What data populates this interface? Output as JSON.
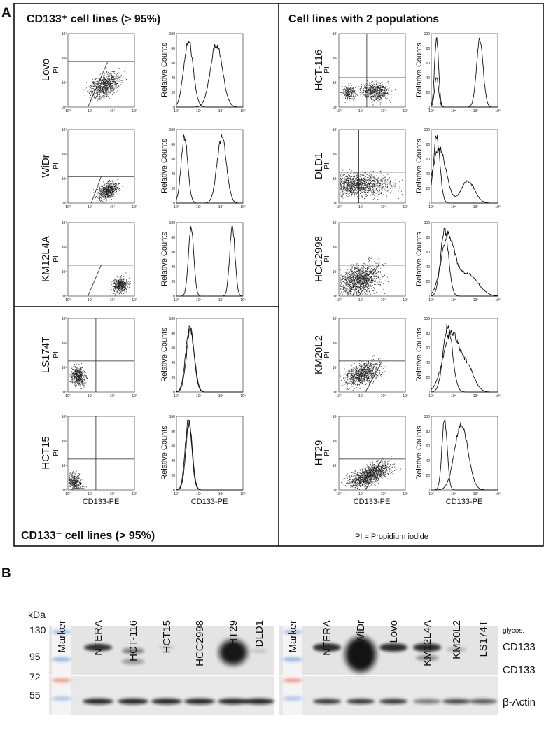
{
  "panel_a": {
    "label": "A",
    "positive_title": "CD133⁺ cell lines (> 95%)",
    "negative_title": "CD133⁻ cell lines (> 95%)",
    "two_pop_title": "Cell lines with 2 populations",
    "positive_lines": [
      "Lovo",
      "WiDr",
      "KM12L4A"
    ],
    "negative_lines": [
      "LS174T",
      "HCT15"
    ],
    "two_pop_lines": [
      "HCT-116",
      "DLD1",
      "HCC2998",
      "KM20L2",
      "HT29"
    ],
    "dot_y_axis": "PI",
    "hist_y_axis": "Relative Counts",
    "x_axis": "CD133-PE",
    "hist_ticks": [
      "0",
      "20",
      "40",
      "60",
      "80",
      "100"
    ],
    "log_ticks": [
      "10⁰",
      "10¹",
      "10²",
      "10³"
    ],
    "footnote": "PI = Propidium iodide"
  },
  "panel_b": {
    "label": "B",
    "kda_label": "kDa",
    "kda_markers": [
      "130",
      "95",
      "72",
      "55"
    ],
    "lanes_left": [
      "Marker",
      "NTERA",
      "HCT-116",
      "HCT15",
      "HCC2998",
      "HT29",
      "DLD1"
    ],
    "lanes_right": [
      "Marker",
      "NTERA",
      "WiDr",
      "Lovo",
      "KM12L4A",
      "KM20L2",
      "LS174T"
    ],
    "band_labels": [
      "glycos.",
      "CD133",
      "CD133",
      "β-Actin"
    ]
  }
}
